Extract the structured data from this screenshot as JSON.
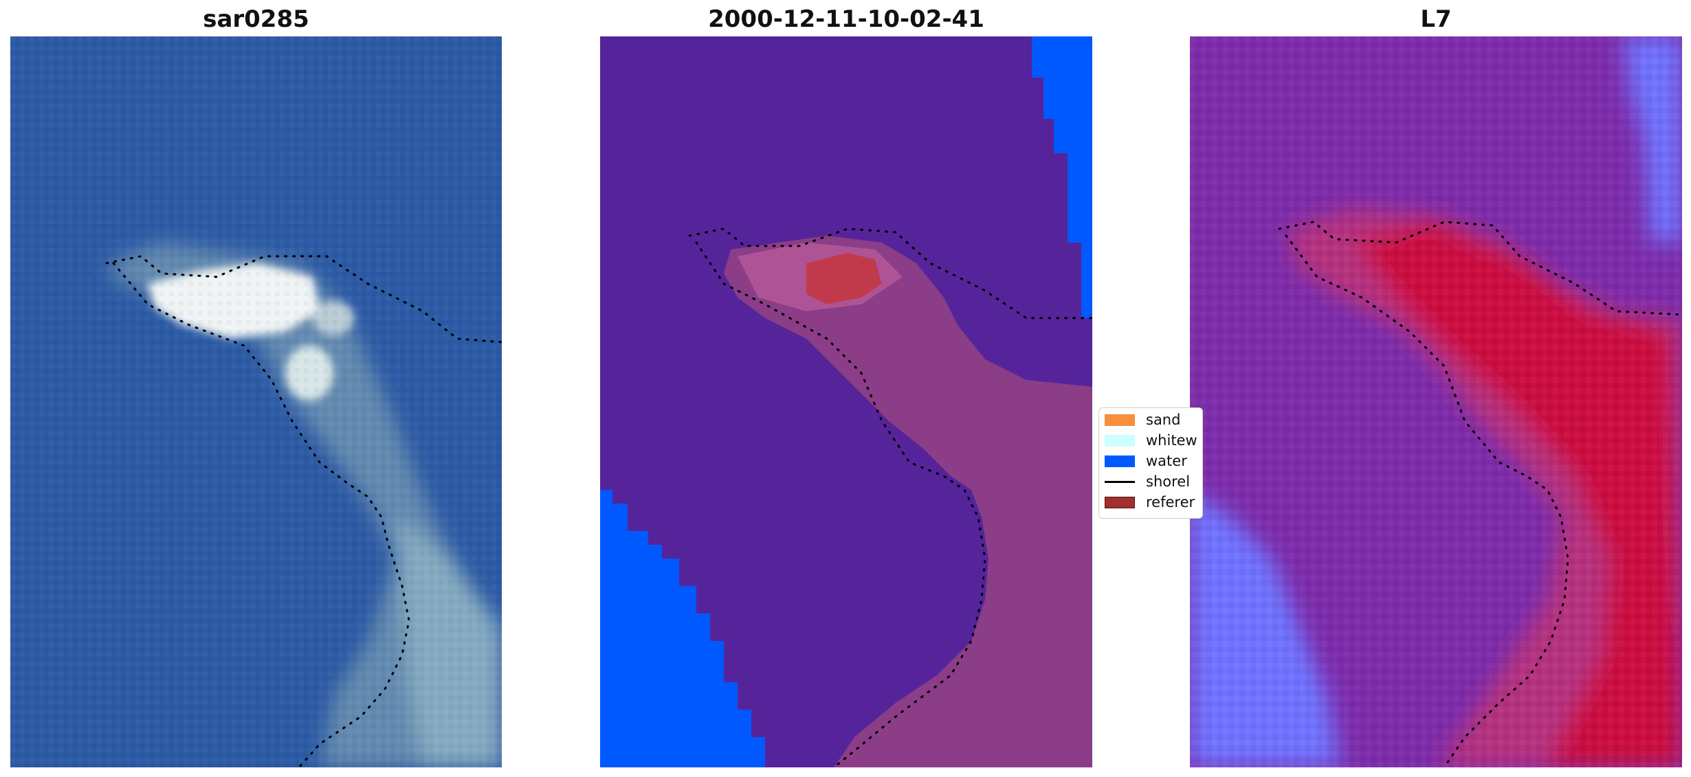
{
  "panels": [
    {
      "title": "sar0285",
      "kind": "rgb"
    },
    {
      "title": "2000-12-11-10-02-41",
      "kind": "classified"
    },
    {
      "title": "L7",
      "kind": "index"
    }
  ],
  "legend": {
    "items": [
      {
        "label": "sand",
        "color": "#f98e3c"
      },
      {
        "label": "whitew",
        "color": "#ccffff"
      },
      {
        "label": "water",
        "color": "#0059ff"
      },
      {
        "label": "shorel",
        "color": "#000000",
        "type": "line"
      },
      {
        "label": "referer",
        "color": "#a0302e"
      }
    ]
  },
  "colors": {
    "ocean": "#2f5fa8",
    "classified_background": "#55249a",
    "water_class": "#0059ff",
    "reference": "#b8333f",
    "index_low": "#7a2fae",
    "index_high": "#cc1040",
    "index_water": "#6f73ff"
  }
}
